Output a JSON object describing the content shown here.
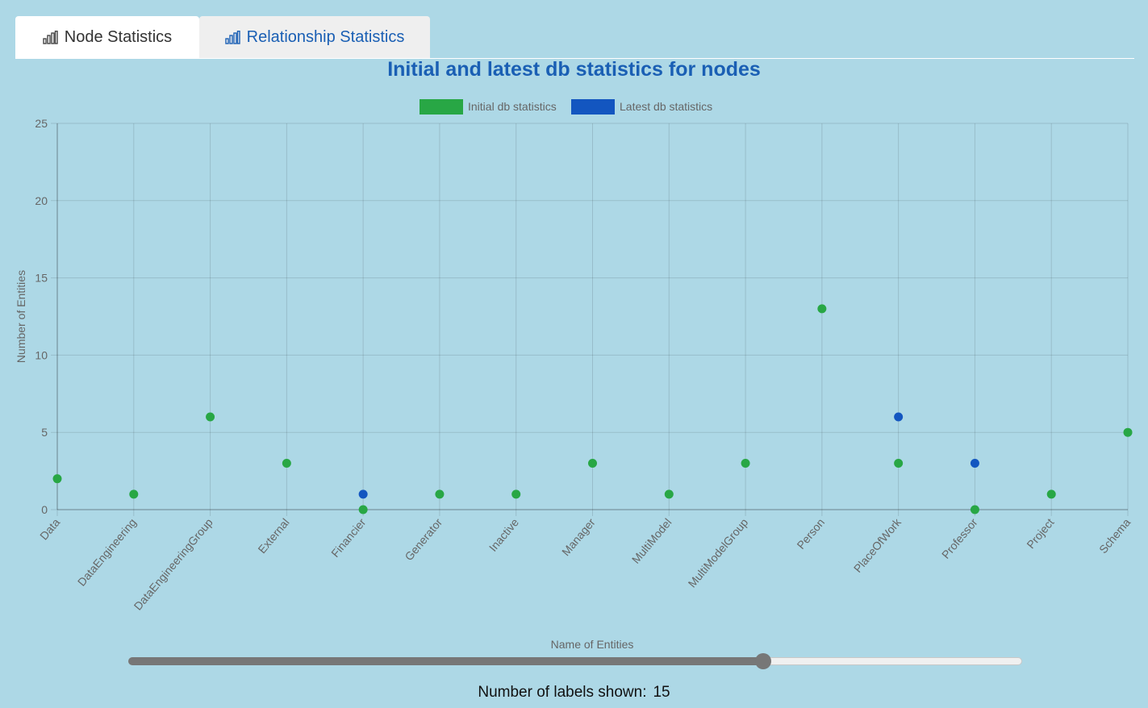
{
  "tabs": [
    {
      "label": "Node Statistics",
      "icon": "bar-chart-icon",
      "active": true
    },
    {
      "label": "Relationship Statistics",
      "icon": "bar-chart-icon",
      "active": false
    }
  ],
  "colors": {
    "initial": "#28a745",
    "latest": "#1356c0",
    "title": "#1a5fb4"
  },
  "chart_data": {
    "type": "scatter",
    "title": "Initial and latest db statistics for nodes",
    "xlabel": "Name of Entities",
    "ylabel": "Number of Entities",
    "ylim": [
      0,
      25
    ],
    "yticks": [
      0,
      5,
      10,
      15,
      20,
      25
    ],
    "grid": true,
    "legend_position": "top",
    "categories": [
      "Data",
      "DataEngineering",
      "DataEngineeringGroup",
      "External",
      "Financier",
      "Generator",
      "Inactive",
      "Manager",
      "MultiModel",
      "MultiModelGroup",
      "Person",
      "PlaceOfWork",
      "Professor",
      "Project",
      "Schema"
    ],
    "series": [
      {
        "name": "Initial db statistics",
        "values": [
          2,
          1,
          6,
          3,
          0,
          1,
          1,
          3,
          1,
          3,
          13,
          3,
          0,
          1,
          5
        ]
      },
      {
        "name": "Latest db statistics",
        "values": [
          null,
          null,
          null,
          null,
          1,
          null,
          null,
          null,
          null,
          null,
          null,
          6,
          3,
          null,
          null
        ]
      }
    ]
  },
  "slider": {
    "fraction": 0.71,
    "label": "Number of labels shown:",
    "value": "15"
  }
}
